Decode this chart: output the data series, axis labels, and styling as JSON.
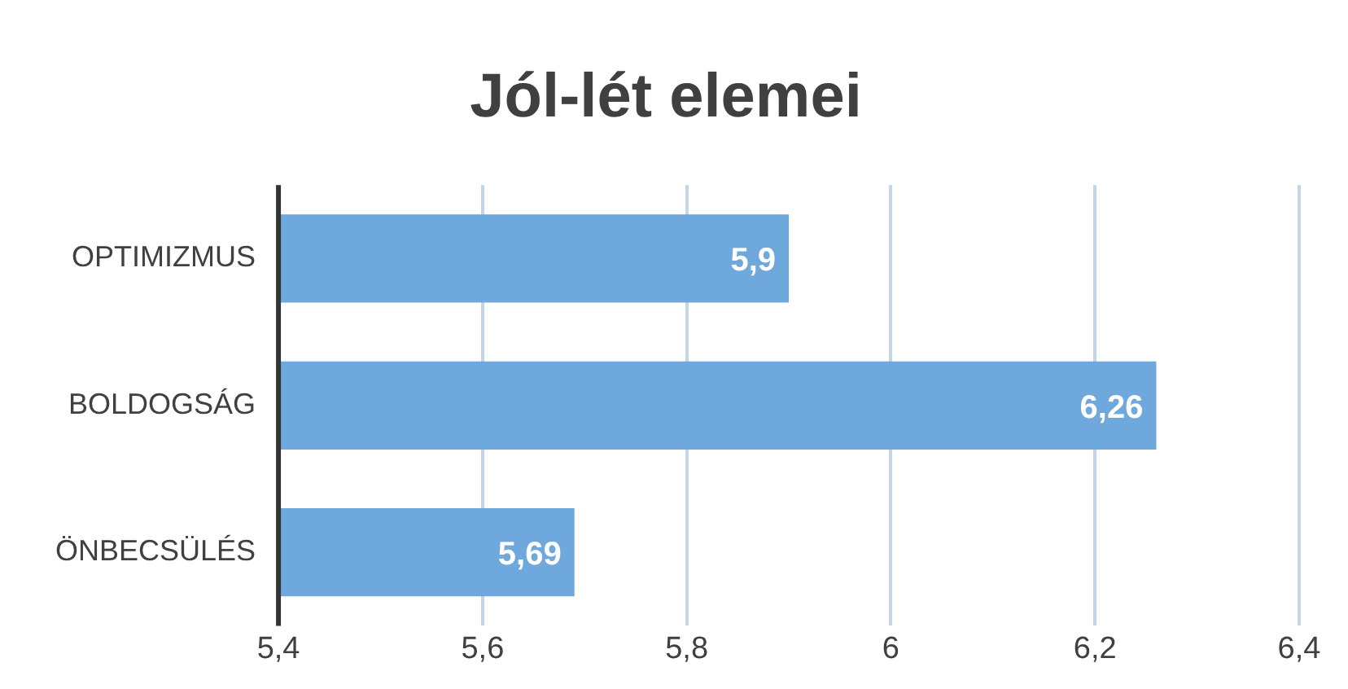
{
  "chart_data": {
    "type": "bar",
    "orientation": "horizontal",
    "title": "Jól-lét elemei",
    "categories": [
      "OPTIMIZMUS",
      "BOLDOGSÁG",
      "ÖNBECSÜLÉS"
    ],
    "values": [
      5.9,
      6.26,
      5.69
    ],
    "color": "#6fa8dc",
    "value_labels": [
      "5,9",
      "6,26",
      "5,69"
    ],
    "xlim": [
      5.4,
      6.4
    ],
    "xticks": [
      {
        "value": 5.4,
        "label": "5,4"
      },
      {
        "value": 5.6,
        "label": "5,6"
      },
      {
        "value": 5.8,
        "label": "5,8"
      },
      6,
      {
        "value": 6.2,
        "label": "6,2"
      },
      {
        "value": 6.4,
        "label": "6,4"
      }
    ],
    "grid": "x",
    "legend": false
  }
}
